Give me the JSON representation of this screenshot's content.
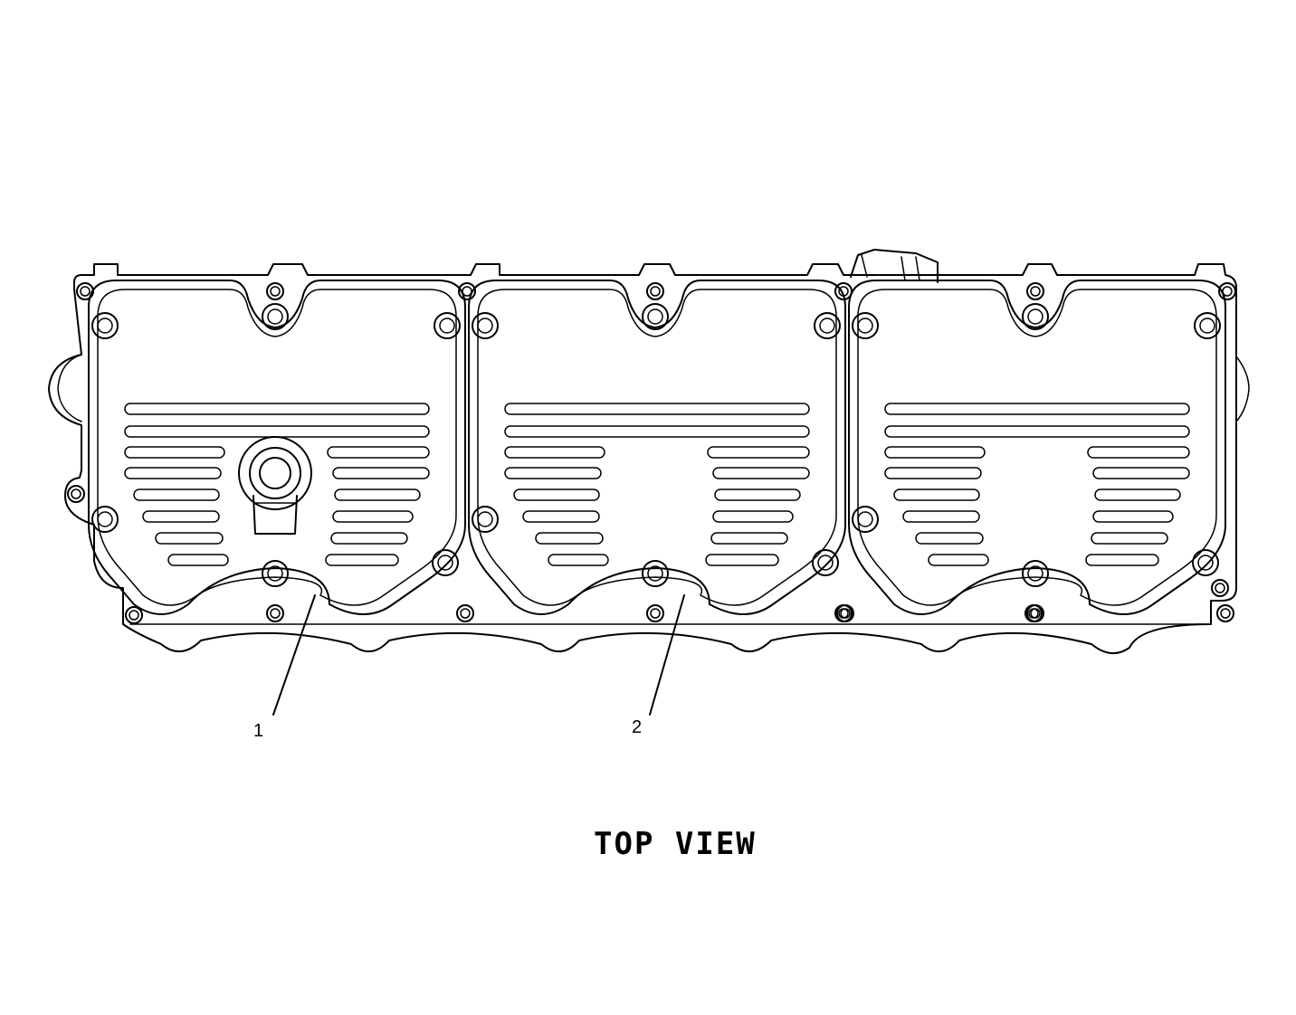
{
  "diagram": {
    "title": "TOP VIEW",
    "callouts": [
      {
        "id": "1",
        "label": "1"
      },
      {
        "id": "2",
        "label": "2"
      }
    ],
    "line_color": "#000000",
    "background": "#ffffff"
  }
}
